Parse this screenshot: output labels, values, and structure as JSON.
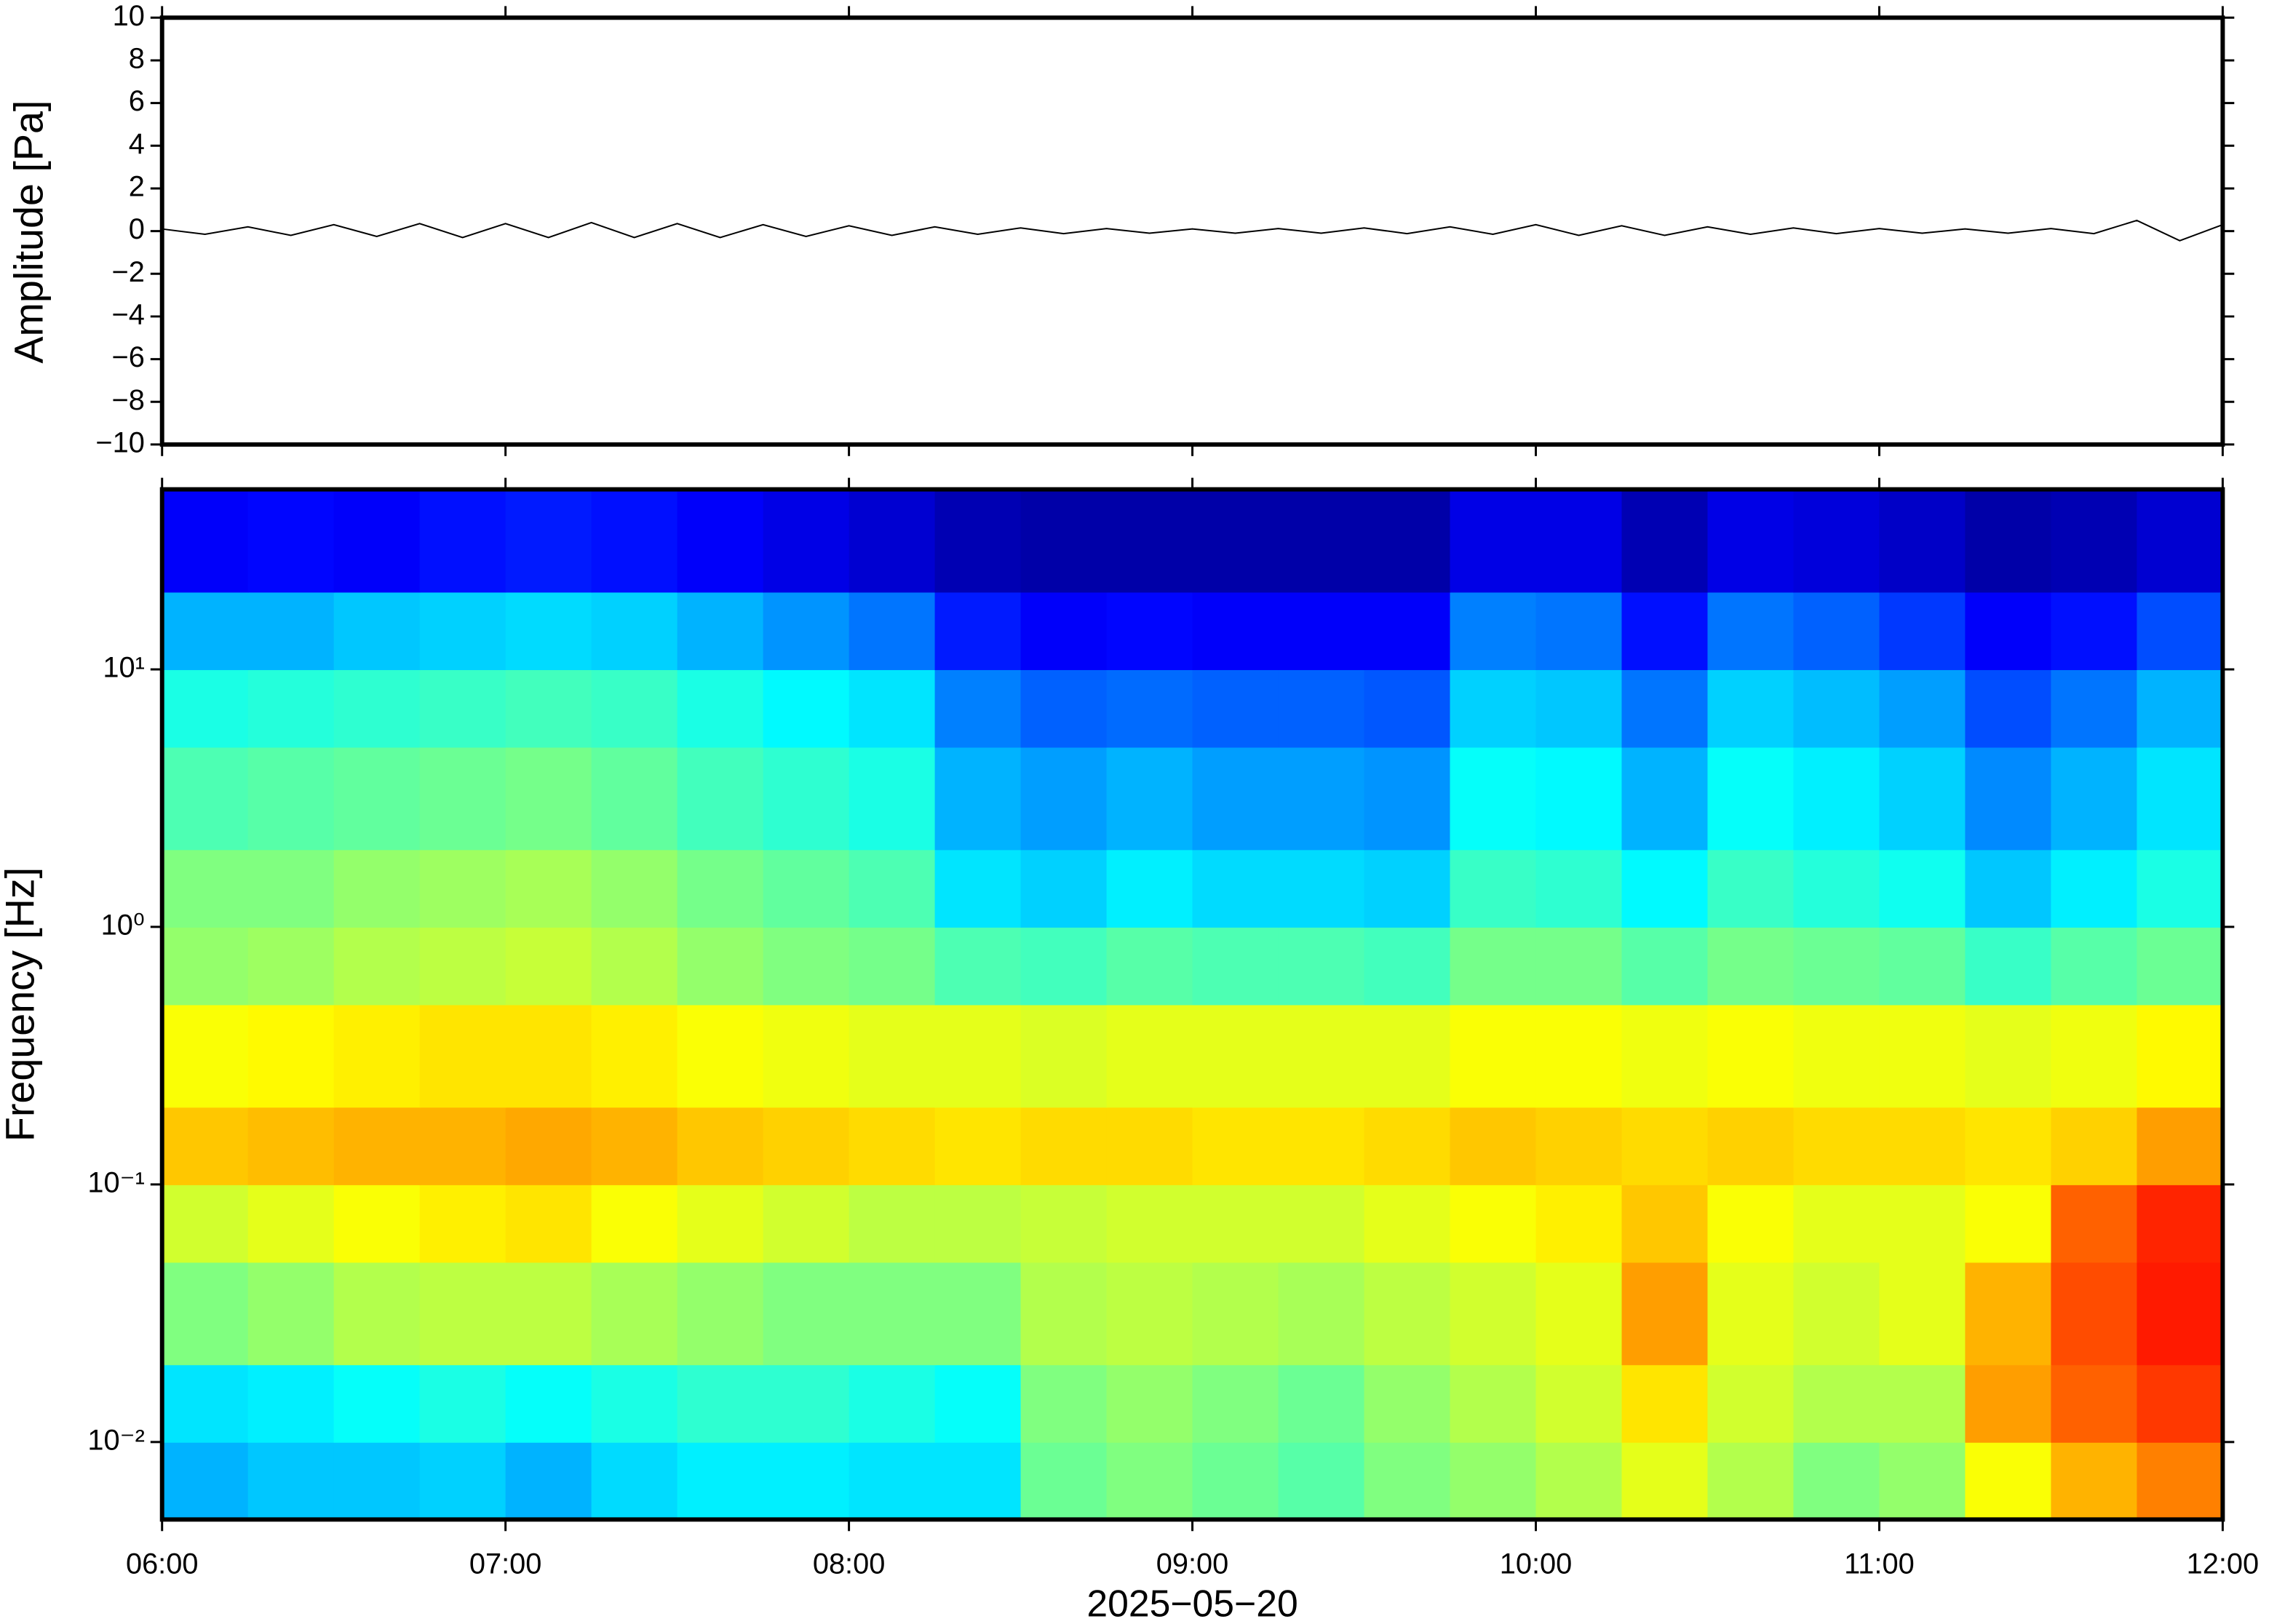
{
  "chart_data": [
    {
      "type": "line",
      "y_label": "Amplitude [Pa]",
      "color": "#000000",
      "xlim": [
        6,
        12
      ],
      "xticks": [
        6,
        7,
        8,
        9,
        10,
        11,
        12
      ],
      "ylim": [
        -10,
        10
      ],
      "yticks": [
        {
          "value": -10,
          "label": "−10"
        },
        {
          "value": -8,
          "label": "−8"
        },
        {
          "value": -6,
          "label": "−6"
        },
        {
          "value": -4,
          "label": "−4"
        },
        {
          "value": -2,
          "label": "−2"
        },
        0,
        2,
        4,
        6,
        8,
        10
      ],
      "x": [
        6,
        6.125,
        6.25,
        6.375,
        6.5,
        6.625,
        6.75,
        6.875,
        7,
        7.125,
        7.25,
        7.375,
        7.5,
        7.625,
        7.75,
        7.875,
        8,
        8.125,
        8.25,
        8.375,
        8.5,
        8.625,
        8.75,
        8.875,
        9,
        9.125,
        9.25,
        9.375,
        9.5,
        9.625,
        9.75,
        9.875,
        10,
        10.125,
        10.25,
        10.375,
        10.5,
        10.625,
        10.75,
        10.875,
        11,
        11.125,
        11.25,
        11.375,
        11.5,
        11.625,
        11.75,
        11.875,
        12
      ],
      "values": [
        0.1,
        -0.15,
        0.2,
        -0.2,
        0.3,
        -0.25,
        0.35,
        -0.3,
        0.35,
        -0.3,
        0.4,
        -0.3,
        0.35,
        -0.3,
        0.3,
        -0.25,
        0.25,
        -0.2,
        0.2,
        -0.15,
        0.15,
        -0.12,
        0.12,
        -0.1,
        0.1,
        -0.1,
        0.12,
        -0.1,
        0.15,
        -0.12,
        0.2,
        -0.15,
        0.3,
        -0.2,
        0.25,
        -0.2,
        0.2,
        -0.15,
        0.15,
        -0.12,
        0.12,
        -0.1,
        0.1,
        -0.1,
        0.12,
        -0.12,
        0.5,
        -0.45,
        0.3
      ]
    },
    {
      "type": "heatmap",
      "y_label": "Frequency [Hz]",
      "x_label": "2025−05−20",
      "colormap": "jet",
      "y_log": true,
      "xlim": [
        6,
        12
      ],
      "xticks": [
        {
          "value": 6,
          "label": "06:00"
        },
        {
          "value": 7,
          "label": "07:00"
        },
        {
          "value": 8,
          "label": "08:00"
        },
        {
          "value": 9,
          "label": "09:00"
        },
        {
          "value": 10,
          "label": "10:00"
        },
        {
          "value": 11,
          "label": "11:00"
        },
        {
          "value": 12,
          "label": "12:00"
        }
      ],
      "ylim": [
        0.005,
        50
      ],
      "yticks": [
        {
          "value": 0.01,
          "label": "10⁻²"
        },
        {
          "value": 0.1,
          "label": "10⁻¹"
        },
        {
          "value": 1,
          "label": "10⁰"
        },
        {
          "value": 10,
          "label": "10¹"
        }
      ],
      "x_edges": [
        6,
        6.25,
        6.5,
        6.75,
        7,
        7.25,
        7.5,
        7.75,
        8,
        8.25,
        8.5,
        8.75,
        9,
        9.25,
        9.5,
        9.75,
        10,
        10.25,
        10.5,
        10.75,
        11,
        11.25,
        11.5,
        11.75,
        12
      ],
      "y_edges": [
        0.005,
        0.01,
        0.02,
        0.05,
        0.1,
        0.2,
        0.5,
        1,
        2,
        5,
        10,
        20,
        50
      ],
      "values": [
        [
          0.3,
          0.32,
          0.32,
          0.33,
          0.3,
          0.34,
          0.36,
          0.36,
          0.35,
          0.35,
          0.48,
          0.5,
          0.48,
          0.46,
          0.5,
          0.52,
          0.55,
          0.6,
          0.55,
          0.5,
          0.52,
          0.62,
          0.7,
          0.75
        ],
        [
          0.35,
          0.36,
          0.38,
          0.4,
          0.38,
          0.4,
          0.42,
          0.42,
          0.4,
          0.38,
          0.5,
          0.52,
          0.5,
          0.48,
          0.52,
          0.55,
          0.58,
          0.65,
          0.58,
          0.55,
          0.55,
          0.72,
          0.78,
          0.82
        ],
        [
          0.5,
          0.52,
          0.55,
          0.56,
          0.56,
          0.54,
          0.52,
          0.5,
          0.5,
          0.5,
          0.55,
          0.56,
          0.55,
          0.54,
          0.56,
          0.58,
          0.6,
          0.72,
          0.6,
          0.58,
          0.6,
          0.7,
          0.8,
          0.85
        ],
        [
          0.58,
          0.6,
          0.62,
          0.64,
          0.65,
          0.62,
          0.6,
          0.58,
          0.56,
          0.56,
          0.57,
          0.58,
          0.58,
          0.58,
          0.6,
          0.62,
          0.64,
          0.68,
          0.62,
          0.6,
          0.6,
          0.62,
          0.78,
          0.84
        ],
        [
          0.68,
          0.69,
          0.7,
          0.7,
          0.71,
          0.7,
          0.68,
          0.67,
          0.66,
          0.65,
          0.66,
          0.66,
          0.65,
          0.65,
          0.66,
          0.68,
          0.67,
          0.66,
          0.67,
          0.66,
          0.66,
          0.65,
          0.67,
          0.72
        ],
        [
          0.62,
          0.63,
          0.64,
          0.65,
          0.65,
          0.64,
          0.62,
          0.61,
          0.6,
          0.6,
          0.59,
          0.6,
          0.6,
          0.6,
          0.6,
          0.62,
          0.62,
          0.61,
          0.62,
          0.61,
          0.61,
          0.6,
          0.61,
          0.63
        ],
        [
          0.52,
          0.53,
          0.55,
          0.56,
          0.57,
          0.55,
          0.52,
          0.5,
          0.49,
          0.45,
          0.44,
          0.46,
          0.45,
          0.45,
          0.44,
          0.49,
          0.49,
          0.46,
          0.49,
          0.48,
          0.47,
          0.43,
          0.46,
          0.48
        ],
        [
          0.5,
          0.5,
          0.52,
          0.53,
          0.54,
          0.52,
          0.49,
          0.47,
          0.45,
          0.35,
          0.33,
          0.36,
          0.34,
          0.34,
          0.33,
          0.43,
          0.42,
          0.37,
          0.43,
          0.41,
          0.39,
          0.32,
          0.36,
          0.4
        ],
        [
          0.45,
          0.46,
          0.47,
          0.48,
          0.49,
          0.47,
          0.44,
          0.42,
          0.4,
          0.3,
          0.28,
          0.3,
          0.28,
          0.28,
          0.27,
          0.38,
          0.37,
          0.3,
          0.38,
          0.36,
          0.33,
          0.26,
          0.3,
          0.35
        ],
        [
          0.4,
          0.41,
          0.42,
          0.43,
          0.44,
          0.43,
          0.4,
          0.37,
          0.35,
          0.25,
          0.22,
          0.23,
          0.22,
          0.22,
          0.21,
          0.33,
          0.32,
          0.24,
          0.33,
          0.31,
          0.28,
          0.2,
          0.24,
          0.3
        ],
        [
          0.3,
          0.3,
          0.32,
          0.33,
          0.34,
          0.33,
          0.3,
          0.27,
          0.24,
          0.15,
          0.12,
          0.13,
          0.12,
          0.12,
          0.12,
          0.25,
          0.24,
          0.14,
          0.24,
          0.22,
          0.18,
          0.12,
          0.14,
          0.2
        ],
        [
          0.12,
          0.13,
          0.12,
          0.14,
          0.15,
          0.14,
          0.12,
          0.1,
          0.08,
          0.05,
          0.04,
          0.04,
          0.04,
          0.04,
          0.04,
          0.1,
          0.1,
          0.05,
          0.1,
          0.09,
          0.07,
          0.04,
          0.05,
          0.08
        ]
      ]
    }
  ]
}
